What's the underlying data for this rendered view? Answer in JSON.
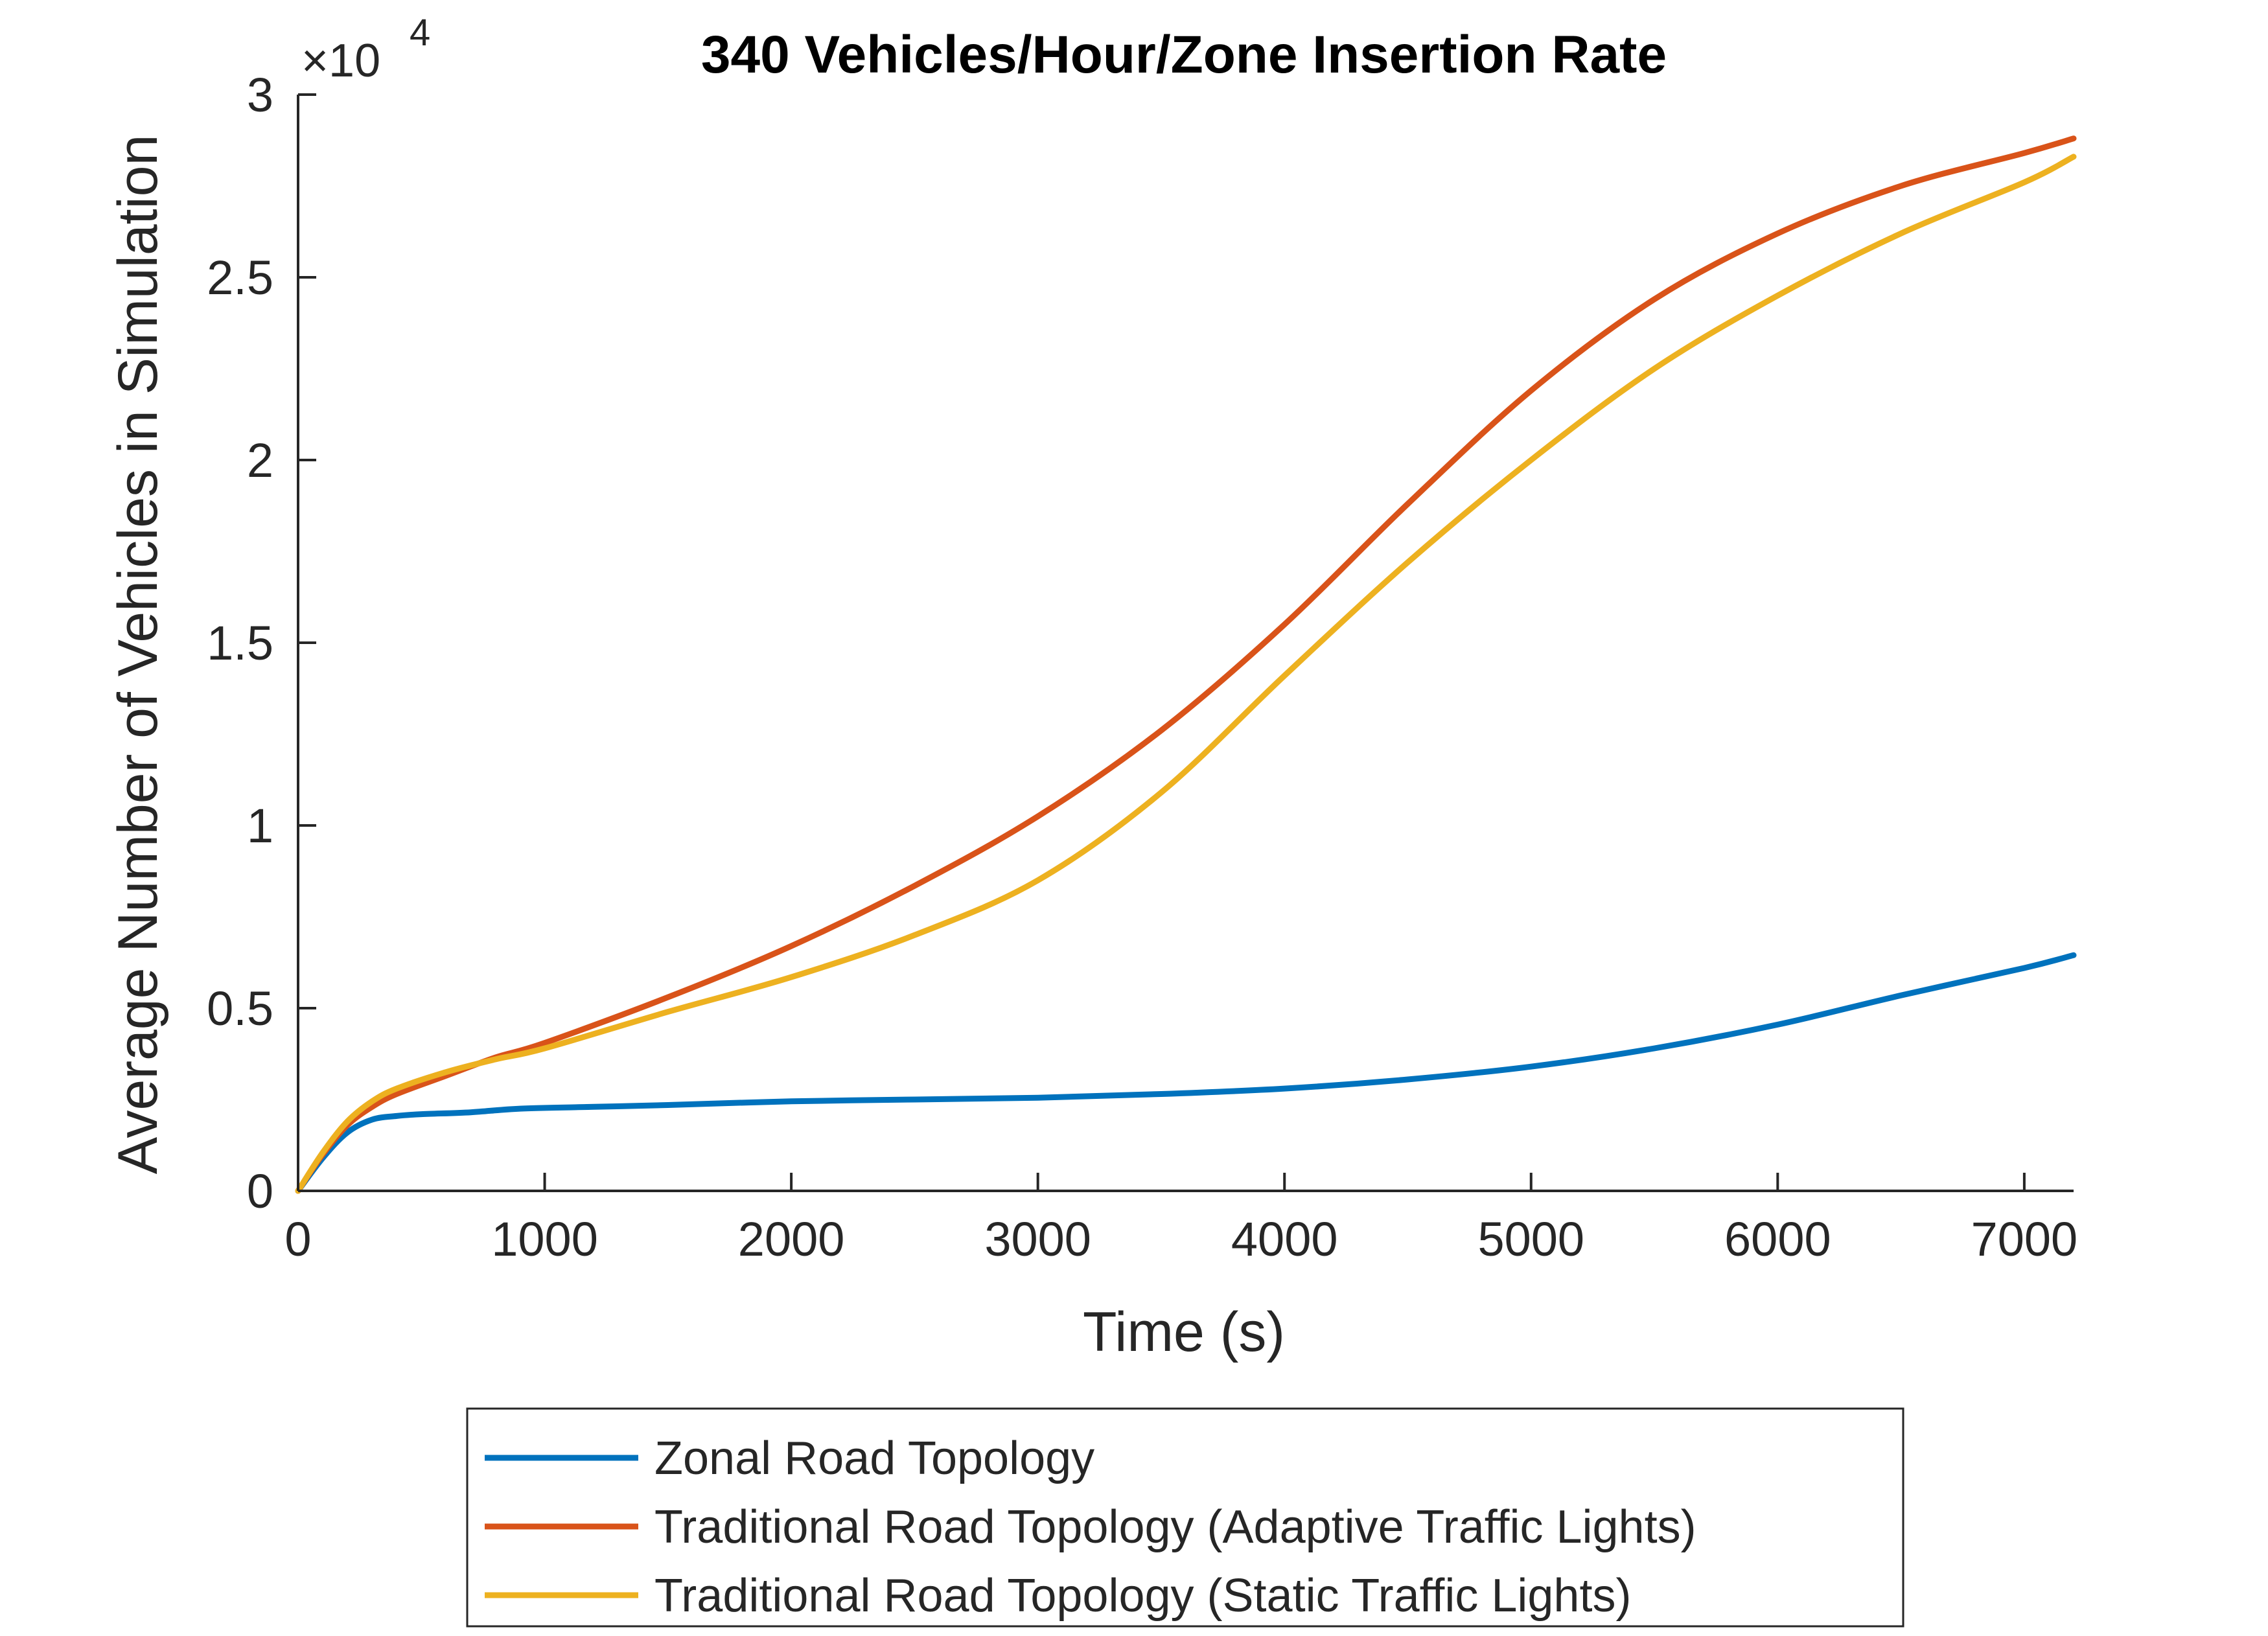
{
  "chart_data": {
    "type": "line",
    "title": "340 Vehicles/Hour/Zone Insertion Rate",
    "xlabel": "Time (s)",
    "ylabel": "Average Number of Vehicles in Simulation",
    "xlim": [
      0,
      7200
    ],
    "ylim": [
      0,
      30000
    ],
    "y_exponent_label": "×10",
    "y_exponent_power": "4",
    "x_ticks": [
      0,
      1000,
      2000,
      3000,
      4000,
      5000,
      6000,
      7000
    ],
    "x_tick_labels": [
      "0",
      "1000",
      "2000",
      "3000",
      "4000",
      "5000",
      "6000",
      "7000"
    ],
    "y_ticks": [
      0,
      5000,
      10000,
      15000,
      20000,
      25000,
      30000
    ],
    "y_tick_labels": [
      "0",
      "0.5",
      "1",
      "1.5",
      "2",
      "2.5",
      "3"
    ],
    "grid": false,
    "legend_position": "bottom-outside",
    "series": [
      {
        "name": "Zonal Road Topology",
        "color": "#0072BD",
        "x": [
          0,
          100,
          200,
          300,
          400,
          500,
          700,
          900,
          1200,
          1500,
          2000,
          2500,
          3000,
          3500,
          4000,
          4500,
          5000,
          5500,
          6000,
          6500,
          7000,
          7200
        ],
        "y": [
          0,
          900,
          1600,
          1950,
          2050,
          2100,
          2150,
          2250,
          2300,
          2350,
          2450,
          2500,
          2550,
          2650,
          2800,
          3050,
          3400,
          3900,
          4550,
          5350,
          6100,
          6450
        ]
      },
      {
        "name": "Traditional Road Topology (Adaptive Traffic Lights)",
        "color": "#D95319",
        "x": [
          0,
          100,
          200,
          300,
          400,
          600,
          800,
          1000,
          1500,
          2000,
          2500,
          3000,
          3500,
          4000,
          4500,
          5000,
          5500,
          6000,
          6500,
          7000,
          7200
        ],
        "y": [
          0,
          1000,
          1800,
          2300,
          2650,
          3150,
          3650,
          4050,
          5300,
          6700,
          8350,
          10250,
          12600,
          15500,
          18800,
          21900,
          24400,
          26200,
          27500,
          28400,
          28800
        ]
      },
      {
        "name": "Traditional Road Topology (Static Traffic Lights)",
        "color": "#EDB120",
        "x": [
          0,
          100,
          200,
          300,
          400,
          600,
          800,
          1000,
          1500,
          2000,
          2500,
          3000,
          3500,
          4000,
          4500,
          5000,
          5500,
          6000,
          6500,
          7000,
          7200
        ],
        "y": [
          0,
          1050,
          1900,
          2450,
          2800,
          3250,
          3600,
          3900,
          4900,
          5850,
          7000,
          8500,
          10900,
          14100,
          17200,
          20000,
          22500,
          24500,
          26200,
          27600,
          28300
        ]
      }
    ]
  }
}
